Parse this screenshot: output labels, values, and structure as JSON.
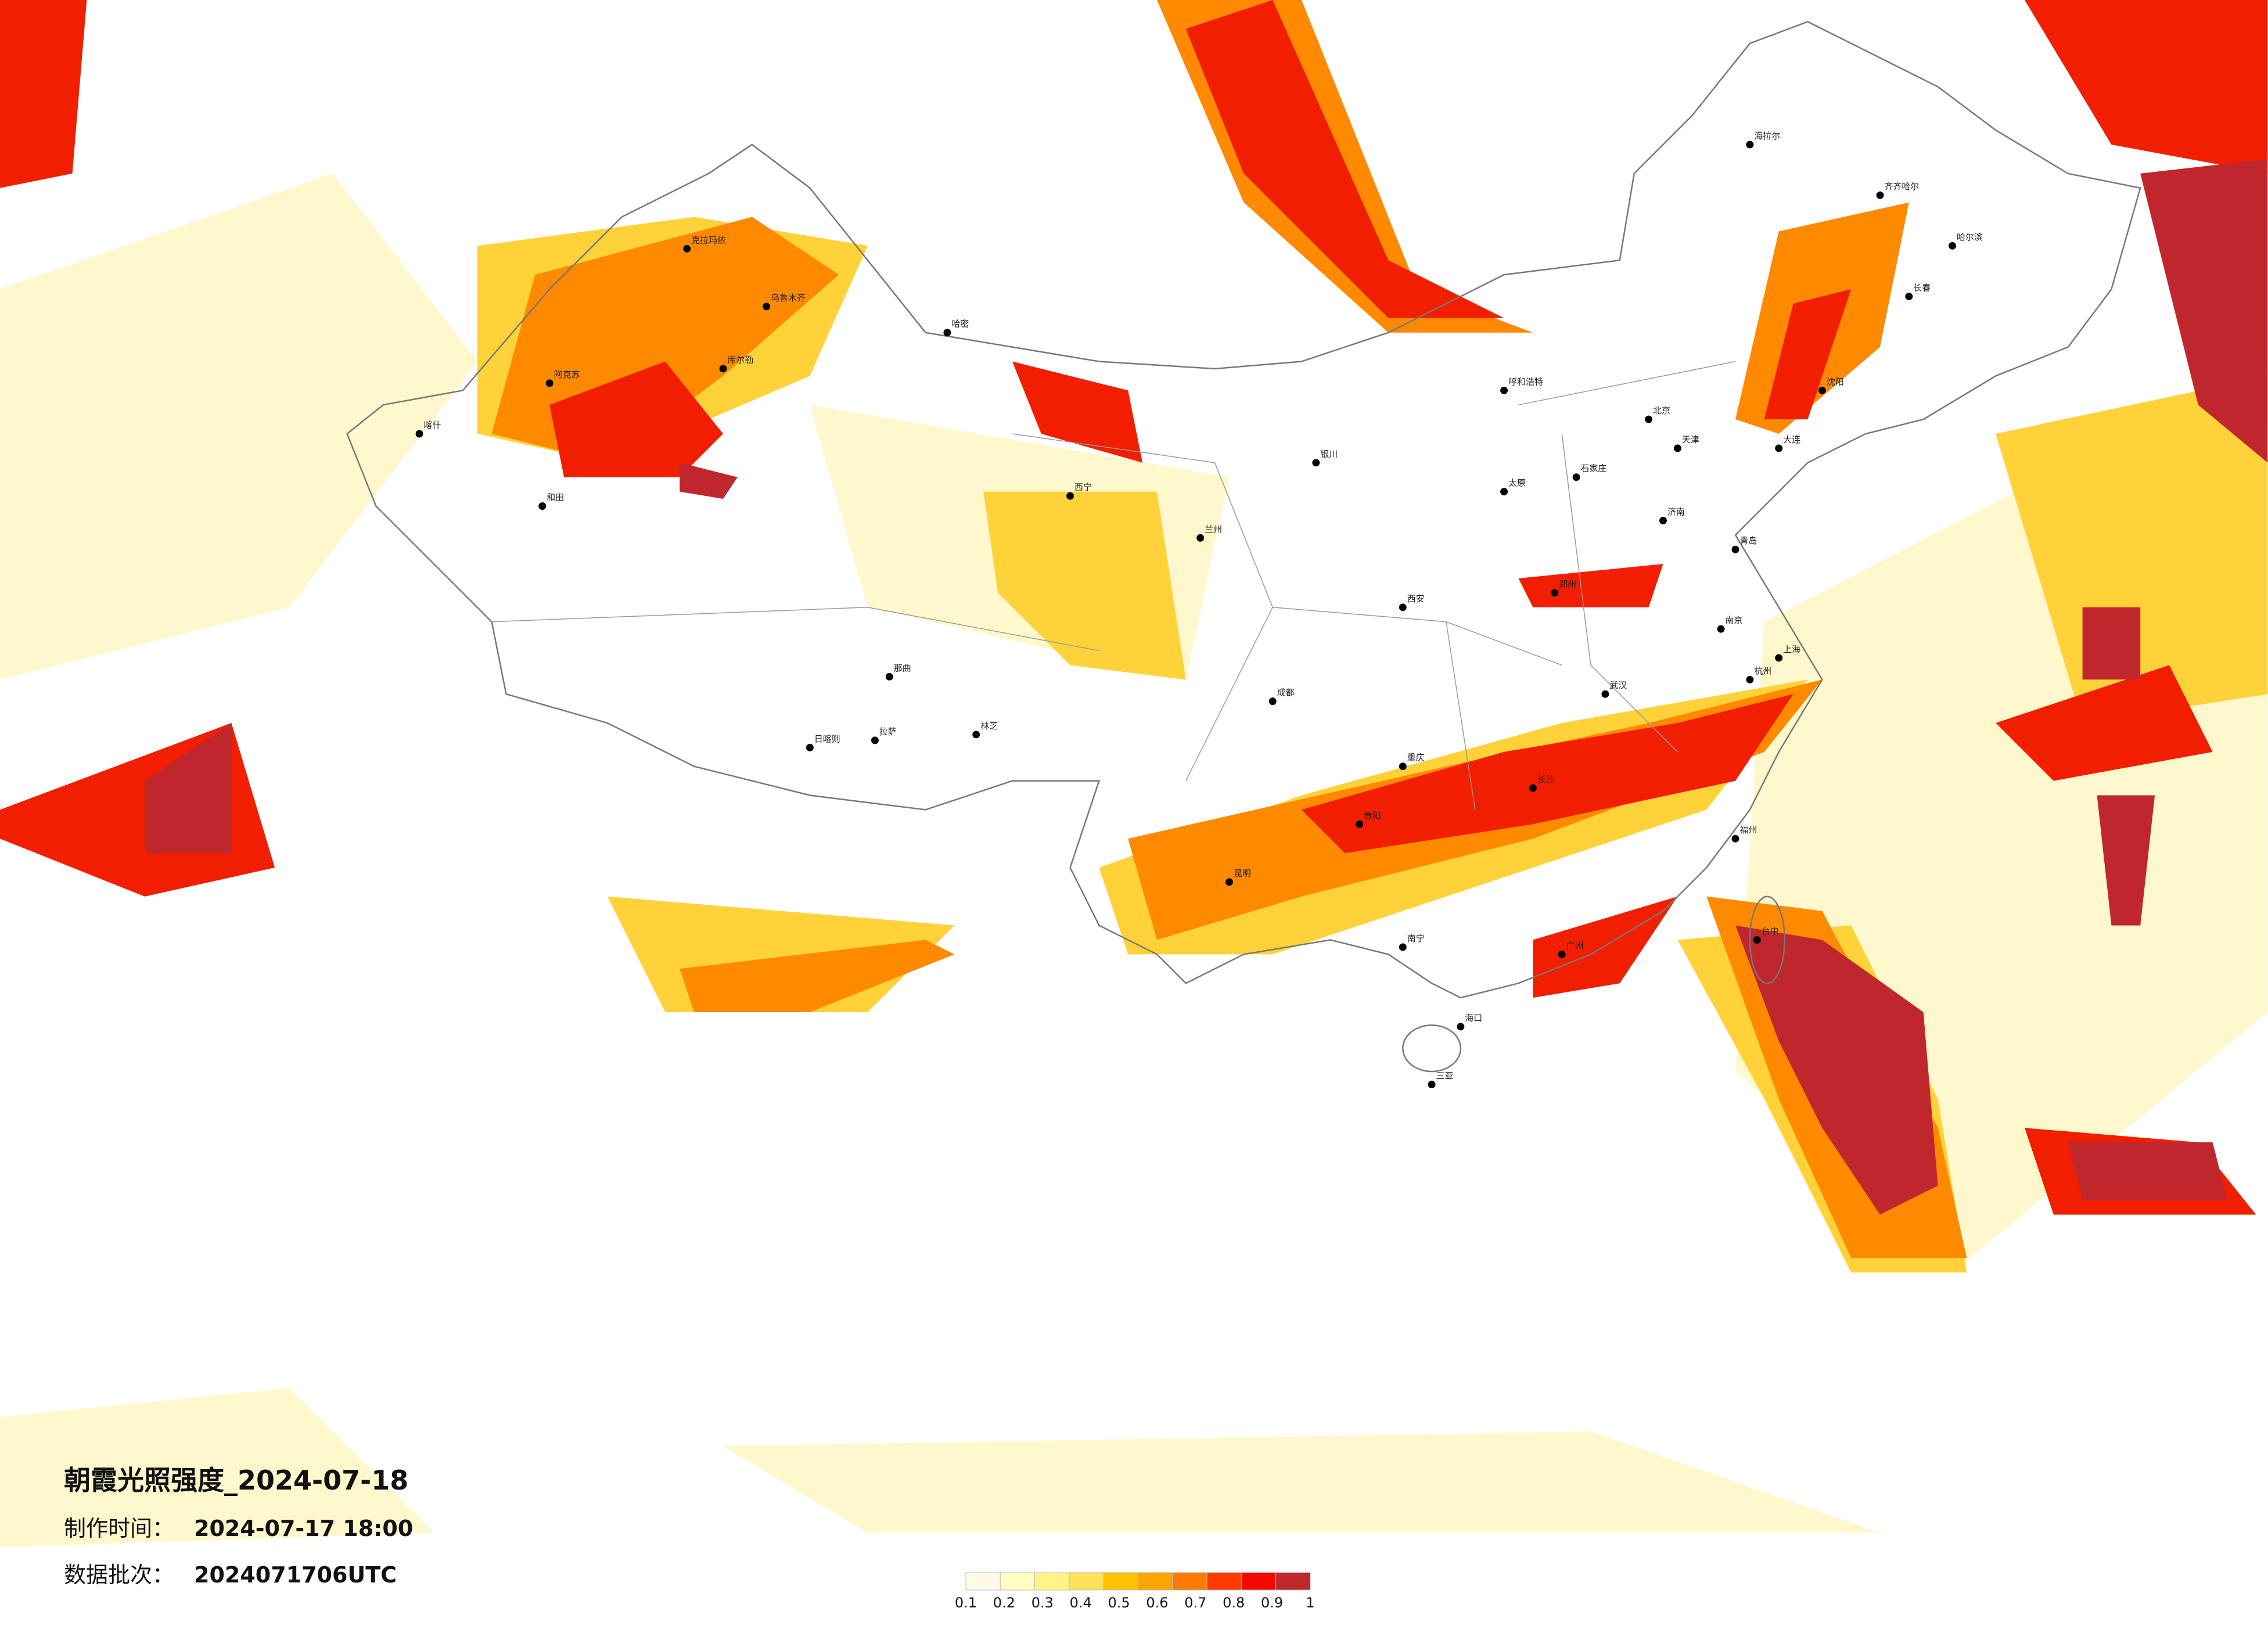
{
  "header": {
    "title": "朝霞光照强度_2024-07-18",
    "made_label": "制作时间：",
    "made_time": "2024-07-17 18:00",
    "batch_label": "数据批次：",
    "batch": "2024071706UTC"
  },
  "legend": {
    "ticks": [
      0.1,
      0.2,
      0.3,
      0.4,
      0.5,
      0.6,
      0.7,
      0.8,
      0.9,
      1
    ],
    "colors": [
      "#fffbe6",
      "#ffffc2",
      "#fff38a",
      "#ffe25a",
      "#ffc400",
      "#ffa400",
      "#ff7a00",
      "#ff3a00",
      "#f00a00",
      "#c0272d"
    ]
  },
  "cities": [
    "克拉玛依",
    "乌鲁木齐",
    "喀什",
    "和田",
    "阿克苏",
    "库尔勒",
    "哈密",
    "拉萨",
    "日喀则",
    "林芝",
    "那曲",
    "西宁",
    "兰州",
    "成都",
    "重庆",
    "昆明",
    "贵阳",
    "南宁",
    "广州",
    "海口",
    "三亚",
    "台中",
    "长沙",
    "武汉",
    "南京",
    "上海",
    "杭州",
    "福州",
    "郑州",
    "西安",
    "太原",
    "石家庄",
    "北京",
    "天津",
    "济南",
    "呼和浩特",
    "沈阳",
    "长春",
    "哈尔滨",
    "海拉尔",
    "银川",
    "大连",
    "青岛",
    "齐齐哈尔"
  ]
}
